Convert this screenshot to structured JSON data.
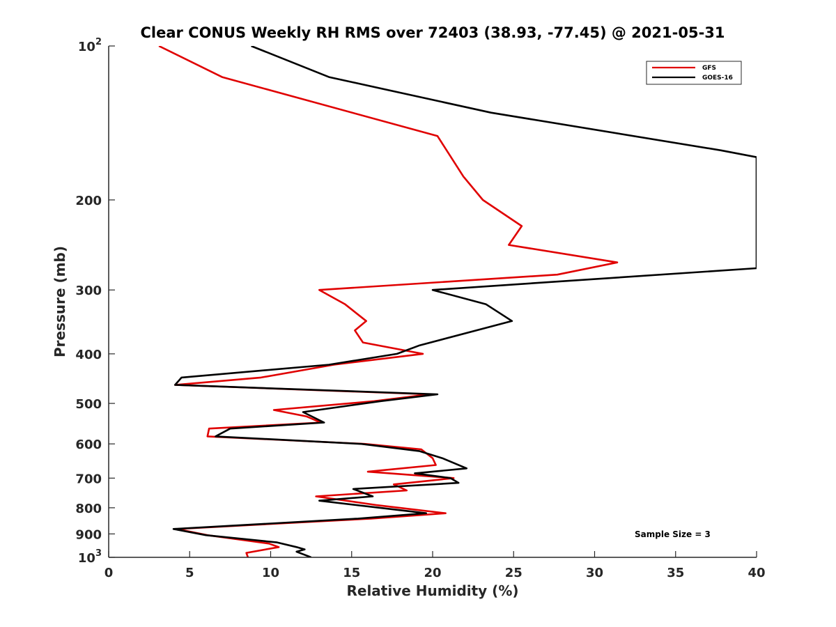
{
  "chart_data": {
    "type": "line",
    "title": "Clear CONUS Weekly RH RMS over 72403 (38.93, -77.45) @ 2021-05-31",
    "xlabel": "Relative Humidity (%)",
    "ylabel": "Pressure (mb)",
    "xlim": [
      0,
      40
    ],
    "ylim": [
      100,
      1000
    ],
    "y_scale": "log",
    "y_reversed": true,
    "grid": false,
    "legend_position": "top-right",
    "x_ticks": [
      0,
      5,
      10,
      15,
      20,
      25,
      30,
      35,
      40
    ],
    "x_tick_labels": [
      "0",
      "5",
      "10",
      "15",
      "20",
      "25",
      "30",
      "35",
      "40"
    ],
    "y_ticks": [
      100,
      200,
      300,
      400,
      500,
      600,
      700,
      800,
      900,
      1000
    ],
    "y_tick_labels": [
      {
        "base": "10",
        "exp": "2"
      },
      {
        "base": "200"
      },
      {
        "base": "300"
      },
      {
        "base": "400"
      },
      {
        "base": "500"
      },
      {
        "base": "600"
      },
      {
        "base": "700"
      },
      {
        "base": "800"
      },
      {
        "base": "900"
      },
      {
        "base": "10",
        "exp": "3"
      }
    ],
    "annotation": "Sample Size = 3",
    "series": [
      {
        "name": "GFS",
        "color": "#e00000",
        "points": [
          [
            3.1,
            100
          ],
          [
            7.0,
            115
          ],
          [
            20.3,
            150
          ],
          [
            21.9,
            180
          ],
          [
            23.1,
            200
          ],
          [
            25.5,
            225
          ],
          [
            24.7,
            245
          ],
          [
            31.4,
            265
          ],
          [
            27.7,
            280
          ],
          [
            13.0,
            300
          ],
          [
            14.6,
            320
          ],
          [
            15.9,
            345
          ],
          [
            15.2,
            360
          ],
          [
            15.7,
            380
          ],
          [
            19.4,
            400
          ],
          [
            13.9,
            420
          ],
          [
            9.4,
            445
          ],
          [
            4.1,
            460
          ],
          [
            19.8,
            480
          ],
          [
            16.4,
            495
          ],
          [
            10.2,
            515
          ],
          [
            12.2,
            530
          ],
          [
            13.1,
            545
          ],
          [
            6.2,
            560
          ],
          [
            6.1,
            580
          ],
          [
            15.8,
            600
          ],
          [
            19.3,
            615
          ],
          [
            20.0,
            640
          ],
          [
            20.2,
            660
          ],
          [
            16.0,
            680
          ],
          [
            21.3,
            700
          ],
          [
            17.6,
            720
          ],
          [
            18.4,
            740
          ],
          [
            12.8,
            760
          ],
          [
            16.5,
            790
          ],
          [
            20.8,
            820
          ],
          [
            16.2,
            840
          ],
          [
            4.2,
            880
          ],
          [
            6.1,
            905
          ],
          [
            9.9,
            940
          ],
          [
            10.5,
            955
          ],
          [
            8.5,
            980
          ],
          [
            8.6,
            1000
          ]
        ]
      },
      {
        "name": "GOES-16",
        "color": "#000000",
        "points": [
          [
            8.8,
            100
          ],
          [
            13.6,
            115
          ],
          [
            23.6,
            135
          ],
          [
            37.8,
            160
          ],
          [
            40.0,
            165
          ],
          [
            40.0,
            272
          ],
          [
            20.0,
            300
          ],
          [
            23.3,
            320
          ],
          [
            24.9,
            345
          ],
          [
            19.2,
            385
          ],
          [
            17.8,
            400
          ],
          [
            13.6,
            420
          ],
          [
            4.5,
            445
          ],
          [
            4.1,
            460
          ],
          [
            20.3,
            480
          ],
          [
            16.8,
            495
          ],
          [
            12.0,
            520
          ],
          [
            13.3,
            545
          ],
          [
            7.5,
            560
          ],
          [
            6.6,
            580
          ],
          [
            15.6,
            600
          ],
          [
            19.2,
            620
          ],
          [
            20.6,
            640
          ],
          [
            22.1,
            670
          ],
          [
            18.9,
            685
          ],
          [
            21.1,
            700
          ],
          [
            21.6,
            715
          ],
          [
            15.1,
            735
          ],
          [
            16.3,
            760
          ],
          [
            13.0,
            775
          ],
          [
            19.6,
            820
          ],
          [
            15.4,
            840
          ],
          [
            4.0,
            880
          ],
          [
            6.0,
            905
          ],
          [
            10.4,
            935
          ],
          [
            11.6,
            955
          ],
          [
            12.1,
            965
          ],
          [
            11.6,
            975
          ],
          [
            12.5,
            1000
          ]
        ]
      }
    ]
  }
}
